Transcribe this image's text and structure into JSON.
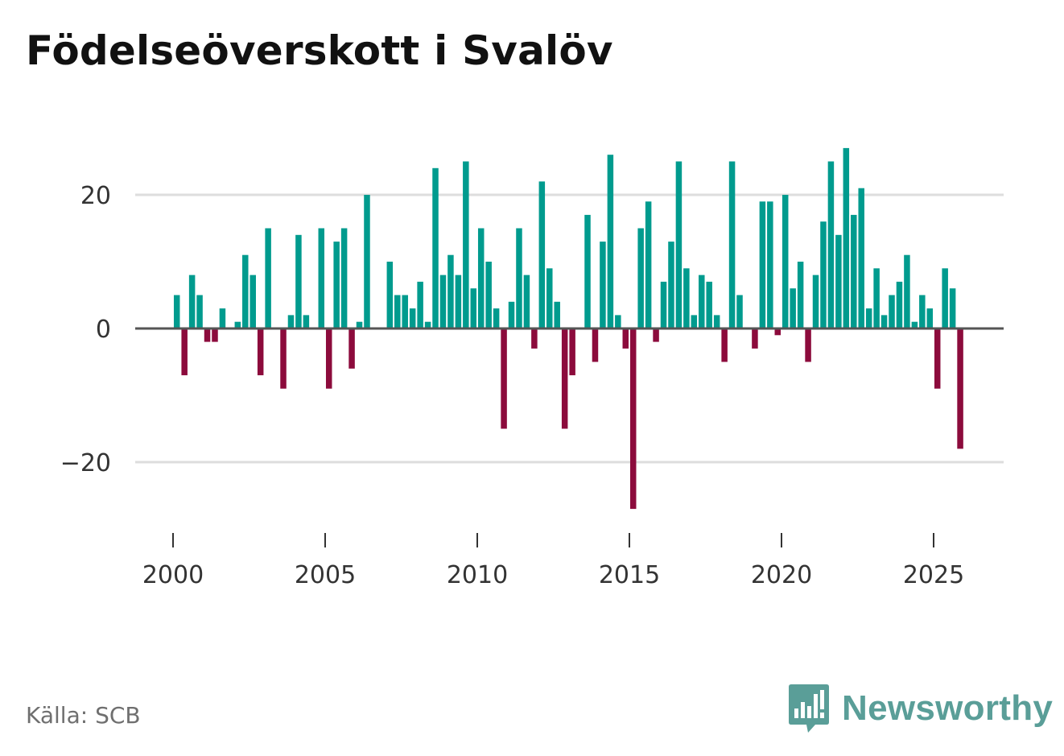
{
  "header": {
    "title": "Födelseöverskott i Svalöv"
  },
  "footer": {
    "source": "Källa: SCB",
    "brand_name": "Newsworthy"
  },
  "colors": {
    "positive": "#009b8e",
    "negative": "#8c0b3c",
    "grid": "#dddddd",
    "zero_line": "#555555",
    "brand": "#5a9e98"
  },
  "chart_data": {
    "type": "bar",
    "title": "Födelseöverskott i Svalöv",
    "xlabel": "",
    "ylabel": "",
    "ylim": [
      -30,
      30
    ],
    "xlim": [
      1999.5,
      2027.3
    ],
    "yticks": [
      20,
      0,
      -20
    ],
    "ytick_labels": [
      "20",
      "0",
      "−20"
    ],
    "xticks": [
      2000,
      2005,
      2010,
      2015,
      2020,
      2025
    ],
    "xtick_labels": [
      "2000",
      "2005",
      "2010",
      "2015",
      "2020",
      "2025"
    ],
    "grid": true,
    "series": [
      {
        "name": "Födelseöverskott",
        "frequency": "quarterly",
        "start": 2000.0,
        "values": [
          5,
          -7,
          8,
          5,
          -2,
          -2,
          3,
          0,
          1,
          11,
          8,
          -7,
          15,
          0,
          -9,
          2,
          14,
          2,
          0,
          15,
          -9,
          13,
          15,
          -6,
          1,
          20,
          0,
          0,
          10,
          5,
          5,
          3,
          7,
          1,
          24,
          8,
          11,
          8,
          25,
          6,
          15,
          10,
          3,
          -15,
          4,
          15,
          8,
          -3,
          22,
          9,
          4,
          -15,
          -7,
          0,
          17,
          -5,
          13,
          26,
          2,
          -3,
          -27,
          15,
          19,
          -2,
          7,
          13,
          25,
          9,
          2,
          8,
          7,
          2,
          -5,
          25,
          5,
          0,
          -3,
          19,
          19,
          -1,
          20,
          6,
          10,
          -5,
          8,
          16,
          25,
          14,
          27,
          17,
          21,
          3,
          9,
          2,
          5,
          7,
          11,
          1,
          5,
          3,
          -9,
          9,
          6,
          -18
        ]
      }
    ]
  }
}
